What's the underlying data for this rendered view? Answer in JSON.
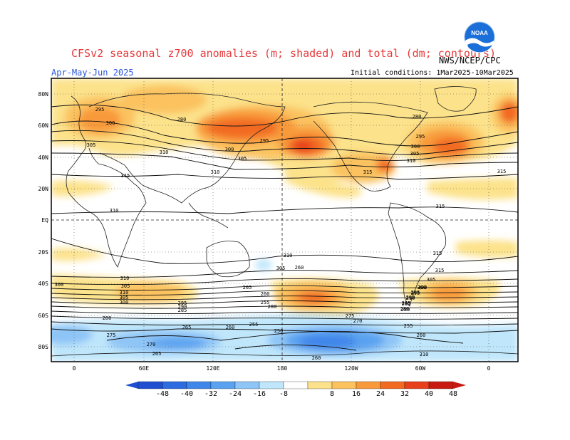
{
  "header": {
    "title": "CFSv2 seasonal z700 anomalies (m; shaded) and total (dm; contours)",
    "credit": "NWS/NCEP/CPC",
    "logo_text": "NOAA",
    "season": "Apr-May-Jun 2025",
    "initial_conditions": "Initial conditions: 1Mar2025-10Mar2025"
  },
  "map": {
    "lat_labels": [
      "80N",
      "60N",
      "40N",
      "20N",
      "EQ",
      "20S",
      "40S",
      "60S",
      "80S"
    ],
    "lon_labels": [
      "0",
      "60E",
      "120E",
      "180",
      "120W",
      "60W",
      "0"
    ],
    "contour_labels": [
      "295",
      "300",
      "305",
      "280",
      "310",
      "315",
      "310",
      "300",
      "295",
      "305",
      "310",
      "315",
      "315",
      "280",
      "295",
      "300",
      "305",
      "310",
      "315",
      "315",
      "315",
      "310",
      "305",
      "300",
      "310",
      "305",
      "300",
      "295",
      "290",
      "285",
      "280",
      "275",
      "270",
      "265",
      "260",
      "255",
      "250",
      "260",
      "265",
      "260",
      "255",
      "280",
      "305",
      "300",
      "295",
      "290",
      "285",
      "280",
      "275",
      "270",
      "260",
      "265",
      "255",
      "260",
      "310",
      "310",
      "305",
      "300",
      "295",
      "290",
      "285",
      "280"
    ],
    "colors": {
      "neg48": "#1f4fd0",
      "neg40": "#2c6be0",
      "neg32": "#3f86ea",
      "neg24": "#5aa2f0",
      "neg16": "#8ec5f7",
      "neg8": "#bfe6fb",
      "pos8": "#fce28a",
      "pos16": "#fbc25e",
      "pos24": "#f89a3b",
      "pos32": "#f26a22",
      "pos40": "#e8401a",
      "pos48": "#c81a10"
    }
  },
  "colorbar": {
    "ticks": [
      "-48",
      "-40",
      "-32",
      "-24",
      "-16",
      "-8",
      "8",
      "16",
      "24",
      "32",
      "40",
      "48"
    ]
  }
}
